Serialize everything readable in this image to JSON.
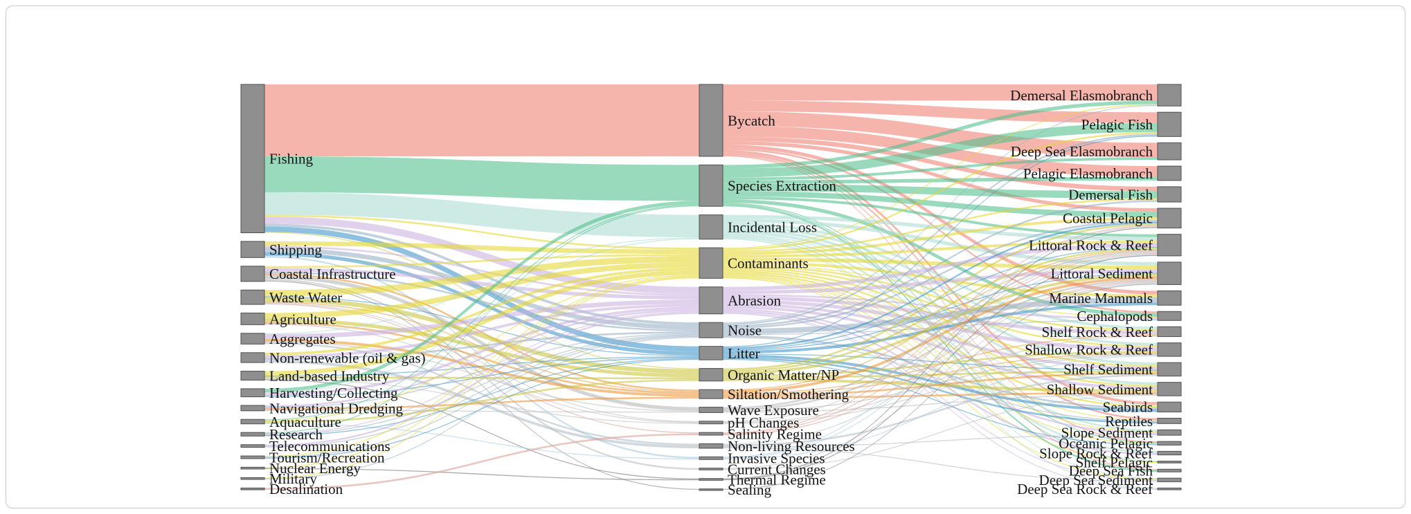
{
  "page": {
    "background_color": "#ffffff",
    "frame_border_color": "#c9c9c9"
  },
  "chart_data": {
    "type": "sankey",
    "title": "",
    "legend": "none",
    "node_color": "#8f8f8f",
    "node_border_color": "#4f4f4f",
    "label_color": "#141414",
    "default_link_color": "#b5b5b5",
    "link_opacity": 0.58,
    "columns": [
      {
        "name": "activities",
        "label_side": "right",
        "nodes": [
          "Fishing",
          "Shipping",
          "Coastal Infrastructure",
          "Waste Water",
          "Agriculture",
          "Aggregates",
          "Non-renewable (oil & gas)",
          "Land-based Industry",
          "Harvesting/Collecting",
          "Navigational Dredging",
          "Aquaculture",
          "Research",
          "Telecommunications",
          "Tourism/Recreation",
          "Nuclear Energy",
          "Military",
          "Desalination"
        ]
      },
      {
        "name": "pressures",
        "label_side": "right",
        "nodes": [
          "Bycatch",
          "Species Extraction",
          "Incidental Loss",
          "Contaminants",
          "Abrasion",
          "Noise",
          "Litter",
          "Organic Matter/NP",
          "Siltation/Smothering",
          "Wave Exposure",
          "pH Changes",
          "Salinity Regime",
          "Non-living Resources",
          "Invasive Species",
          "Current Changes",
          "Thermal Regime",
          "Sealing"
        ]
      },
      {
        "name": "ecosystem-components",
        "label_side": "left",
        "nodes": [
          "Demersal Elasmobranch",
          "Pelagic Fish",
          "Deep Sea Elasmobranch",
          "Pelagic Elasmobranch",
          "Demersal Fish",
          "Coastal Pelagic",
          "Littoral Rock & Reef",
          "Littoral Sediment",
          "Marine Mammals",
          "Cephalopods",
          "Shelf Rock & Reef",
          "Shallow Rock & Reef",
          "Shelf Sediment",
          "Shallow Sediment",
          "Seabirds",
          "Reptiles",
          "Slope Sediment",
          "Oceanic Pelagic",
          "Slope Rock & Reef",
          "Shelf Pelagic",
          "Deep Sea Fish",
          "Deep Sea Sediment",
          "Deep Sea Rock & Reef"
        ]
      }
    ],
    "pressure_colors": {
      "Bycatch": "#ed7f70",
      "Species Extraction": "#50bd8b",
      "Incidental Loss": "#a9dcd1",
      "Contaminants": "#e5d82f",
      "Abrasion": "#c9b1e0",
      "Noise": "#97afc4",
      "Litter": "#3d95c8",
      "Organic Matter/NP": "#c9c63b",
      "Siltation/Smothering": "#ec9537",
      "Wave Exposure": "#b5b5b5",
      "pH Changes": "#bdbdbd",
      "Salinity Regime": "#dd9b90",
      "Non-living Resources": "#b0bec7",
      "Invasive Species": "#a9cbe0",
      "Current Changes": "#bdbdbd",
      "Thermal Regime": "#6e6e6e",
      "Sealing": "#8c8c8c"
    },
    "links": [
      [
        "Fishing",
        "Bycatch",
        80
      ],
      [
        "Fishing",
        "Species Extraction",
        40
      ],
      [
        "Fishing",
        "Incidental Loss",
        25
      ],
      [
        "Fishing",
        "Abrasion",
        8
      ],
      [
        "Fishing",
        "Litter",
        6
      ],
      [
        "Fishing",
        "Noise",
        3
      ],
      [
        "Fishing",
        "Contaminants",
        2
      ],
      [
        "Fishing",
        "Organic Matter/NP",
        1
      ],
      [
        "Shipping",
        "Contaminants",
        5
      ],
      [
        "Shipping",
        "Noise",
        5
      ],
      [
        "Shipping",
        "Litter",
        4
      ],
      [
        "Shipping",
        "Invasive Species",
        2
      ],
      [
        "Shipping",
        "Abrasion",
        2
      ],
      [
        "Coastal Infrastructure",
        "Abrasion",
        4
      ],
      [
        "Coastal Infrastructure",
        "Wave Exposure",
        4
      ],
      [
        "Coastal Infrastructure",
        "Siltation/Smothering",
        2
      ],
      [
        "Coastal Infrastructure",
        "Noise",
        2
      ],
      [
        "Coastal Infrastructure",
        "Contaminants",
        2
      ],
      [
        "Coastal Infrastructure",
        "Current Changes",
        2
      ],
      [
        "Coastal Infrastructure",
        "Sealing",
        1
      ],
      [
        "Waste Water",
        "Contaminants",
        7
      ],
      [
        "Waste Water",
        "Organic Matter/NP",
        5
      ],
      [
        "Waste Water",
        "Litter",
        1
      ],
      [
        "Waste Water",
        "Siltation/Smothering",
        1
      ],
      [
        "Waste Water",
        "pH Changes",
        1
      ],
      [
        "Waste Water",
        "Salinity Regime",
        1
      ],
      [
        "Agriculture",
        "Contaminants",
        6
      ],
      [
        "Agriculture",
        "Organic Matter/NP",
        4
      ],
      [
        "Agriculture",
        "Siltation/Smothering",
        2
      ],
      [
        "Agriculture",
        "pH Changes",
        1
      ],
      [
        "Aggregates",
        "Abrasion",
        5
      ],
      [
        "Aggregates",
        "Siltation/Smothering",
        3
      ],
      [
        "Aggregates",
        "Non-living Resources",
        2
      ],
      [
        "Aggregates",
        "Incidental Loss",
        1
      ],
      [
        "Aggregates",
        "Wave Exposure",
        1
      ],
      [
        "Non-renewable (oil & gas)",
        "Contaminants",
        3
      ],
      [
        "Non-renewable (oil & gas)",
        "Abrasion",
        3
      ],
      [
        "Non-renewable (oil & gas)",
        "Noise",
        2
      ],
      [
        "Non-renewable (oil & gas)",
        "Non-living Resources",
        3
      ],
      [
        "Land-based Industry",
        "Contaminants",
        5
      ],
      [
        "Land-based Industry",
        "Organic Matter/NP",
        2
      ],
      [
        "Land-based Industry",
        "Thermal Regime",
        1
      ],
      [
        "Land-based Industry",
        "Litter",
        1
      ],
      [
        "Land-based Industry",
        "pH Changes",
        1
      ],
      [
        "Harvesting/Collecting",
        "Species Extraction",
        4
      ],
      [
        "Harvesting/Collecting",
        "Abrasion",
        3
      ],
      [
        "Harvesting/Collecting",
        "Incidental Loss",
        1
      ],
      [
        "Harvesting/Collecting",
        "Litter",
        1
      ],
      [
        "Navigational Dredging",
        "Siltation/Smothering",
        2
      ],
      [
        "Navigational Dredging",
        "Abrasion",
        2
      ],
      [
        "Navigational Dredging",
        "Noise",
        1
      ],
      [
        "Navigational Dredging",
        "Wave Exposure",
        1
      ],
      [
        "Aquaculture",
        "Organic Matter/NP",
        2
      ],
      [
        "Aquaculture",
        "Contaminants",
        1
      ],
      [
        "Aquaculture",
        "Invasive Species",
        1
      ],
      [
        "Aquaculture",
        "Species Extraction",
        1
      ],
      [
        "Research",
        "Noise",
        1
      ],
      [
        "Research",
        "Abrasion",
        1
      ],
      [
        "Research",
        "Species Extraction",
        1
      ],
      [
        "Research",
        "Litter",
        1
      ],
      [
        "Telecommunications",
        "Abrasion",
        2
      ],
      [
        "Telecommunications",
        "Noise",
        1
      ],
      [
        "Tourism/Recreation",
        "Litter",
        1
      ],
      [
        "Tourism/Recreation",
        "Noise",
        1
      ],
      [
        "Tourism/Recreation",
        "Contaminants",
        1
      ],
      [
        "Nuclear Energy",
        "Thermal Regime",
        1
      ],
      [
        "Nuclear Energy",
        "Contaminants",
        1
      ],
      [
        "Military",
        "Noise",
        1
      ],
      [
        "Military",
        "Contaminants",
        1
      ],
      [
        "Desalination",
        "Salinity Regime",
        2
      ],
      [
        "Bycatch",
        "Demersal Elasmobranch",
        18
      ],
      [
        "Bycatch",
        "Pelagic Fish",
        12
      ],
      [
        "Bycatch",
        "Deep Sea Elasmobranch",
        16
      ],
      [
        "Bycatch",
        "Pelagic Elasmobranch",
        12
      ],
      [
        "Bycatch",
        "Demersal Fish",
        5
      ],
      [
        "Bycatch",
        "Coastal Pelagic",
        4
      ],
      [
        "Bycatch",
        "Marine Mammals",
        4
      ],
      [
        "Bycatch",
        "Seabirds",
        3
      ],
      [
        "Bycatch",
        "Reptiles",
        2
      ],
      [
        "Bycatch",
        "Cephalopods",
        2
      ],
      [
        "Bycatch",
        "Deep Sea Fish",
        1
      ],
      [
        "Bycatch",
        "Oceanic Pelagic",
        1
      ],
      [
        "Species Extraction",
        "Pelagic Fish",
        10
      ],
      [
        "Species Extraction",
        "Demersal Fish",
        8
      ],
      [
        "Species Extraction",
        "Coastal Pelagic",
        6
      ],
      [
        "Species Extraction",
        "Cephalopods",
        4
      ],
      [
        "Species Extraction",
        "Demersal Elasmobranch",
        4
      ],
      [
        "Species Extraction",
        "Pelagic Elasmobranch",
        4
      ],
      [
        "Species Extraction",
        "Deep Sea Elasmobranch",
        3
      ],
      [
        "Species Extraction",
        "Littoral Rock & Reef",
        3
      ],
      [
        "Species Extraction",
        "Deep Sea Fish",
        2
      ],
      [
        "Species Extraction",
        "Shelf Pelagic",
        1
      ],
      [
        "Species Extraction",
        "Oceanic Pelagic",
        1
      ],
      [
        "Incidental Loss",
        "Littoral Rock & Reef",
        4
      ],
      [
        "Incidental Loss",
        "Littoral Sediment",
        4
      ],
      [
        "Incidental Loss",
        "Shelf Rock & Reef",
        3
      ],
      [
        "Incidental Loss",
        "Shallow Rock & Reef",
        3
      ],
      [
        "Incidental Loss",
        "Shelf Sediment",
        3
      ],
      [
        "Incidental Loss",
        "Shallow Sediment",
        3
      ],
      [
        "Incidental Loss",
        "Slope Sediment",
        2
      ],
      [
        "Incidental Loss",
        "Slope Rock & Reef",
        2
      ],
      [
        "Incidental Loss",
        "Deep Sea Sediment",
        1
      ],
      [
        "Incidental Loss",
        "Deep Sea Rock & Reef",
        1
      ],
      [
        "Incidental Loss",
        "Seabirds",
        1
      ],
      [
        "Contaminants",
        "Littoral Rock & Reef",
        3
      ],
      [
        "Contaminants",
        "Littoral Sediment",
        4
      ],
      [
        "Contaminants",
        "Marine Mammals",
        3
      ],
      [
        "Contaminants",
        "Coastal Pelagic",
        3
      ],
      [
        "Contaminants",
        "Shelf Rock & Reef",
        2
      ],
      [
        "Contaminants",
        "Shallow Rock & Reef",
        2
      ],
      [
        "Contaminants",
        "Shelf Sediment",
        2
      ],
      [
        "Contaminants",
        "Shallow Sediment",
        2
      ],
      [
        "Contaminants",
        "Pelagic Fish",
        2
      ],
      [
        "Contaminants",
        "Demersal Fish",
        2
      ],
      [
        "Contaminants",
        "Seabirds",
        2
      ],
      [
        "Contaminants",
        "Demersal Elasmobranch",
        1
      ],
      [
        "Contaminants",
        "Reptiles",
        1
      ],
      [
        "Contaminants",
        "Cephalopods",
        1
      ],
      [
        "Contaminants",
        "Slope Sediment",
        1
      ],
      [
        "Contaminants",
        "Oceanic Pelagic",
        1
      ],
      [
        "Contaminants",
        "Shelf Pelagic",
        1
      ],
      [
        "Contaminants",
        "Deep Sea Sediment",
        1
      ],
      [
        "Abrasion",
        "Littoral Rock & Reef",
        4
      ],
      [
        "Abrasion",
        "Littoral Sediment",
        4
      ],
      [
        "Abrasion",
        "Shelf Rock & Reef",
        4
      ],
      [
        "Abrasion",
        "Shallow Rock & Reef",
        4
      ],
      [
        "Abrasion",
        "Shelf Sediment",
        3
      ],
      [
        "Abrasion",
        "Shallow Sediment",
        3
      ],
      [
        "Abrasion",
        "Slope Rock & Reef",
        2
      ],
      [
        "Abrasion",
        "Slope Sediment",
        2
      ],
      [
        "Abrasion",
        "Cephalopods",
        2
      ],
      [
        "Abrasion",
        "Deep Sea Rock & Reef",
        1
      ],
      [
        "Abrasion",
        "Deep Sea Sediment",
        1
      ],
      [
        "Noise",
        "Marine Mammals",
        6
      ],
      [
        "Noise",
        "Pelagic Fish",
        2
      ],
      [
        "Noise",
        "Demersal Fish",
        2
      ],
      [
        "Noise",
        "Coastal Pelagic",
        2
      ],
      [
        "Noise",
        "Seabirds",
        2
      ],
      [
        "Noise",
        "Reptiles",
        1
      ],
      [
        "Noise",
        "Cephalopods",
        1
      ],
      [
        "Noise",
        "Demersal Elasmobranch",
        1
      ],
      [
        "Litter",
        "Marine Mammals",
        3
      ],
      [
        "Litter",
        "Seabirds",
        3
      ],
      [
        "Litter",
        "Reptiles",
        2
      ],
      [
        "Litter",
        "Coastal Pelagic",
        2
      ],
      [
        "Litter",
        "Littoral Sediment",
        1
      ],
      [
        "Litter",
        "Littoral Rock & Reef",
        1
      ],
      [
        "Litter",
        "Pelagic Fish",
        1
      ],
      [
        "Litter",
        "Shelf Sediment",
        1
      ],
      [
        "Litter",
        "Oceanic Pelagic",
        1
      ],
      [
        "Organic Matter/NP",
        "Littoral Sediment",
        3
      ],
      [
        "Organic Matter/NP",
        "Shallow Sediment",
        3
      ],
      [
        "Organic Matter/NP",
        "Shelf Sediment",
        2
      ],
      [
        "Organic Matter/NP",
        "Littoral Rock & Reef",
        2
      ],
      [
        "Organic Matter/NP",
        "Shallow Rock & Reef",
        2
      ],
      [
        "Organic Matter/NP",
        "Coastal Pelagic",
        2
      ],
      [
        "Siltation/Smothering",
        "Littoral Sediment",
        3
      ],
      [
        "Siltation/Smothering",
        "Shallow Sediment",
        2
      ],
      [
        "Siltation/Smothering",
        "Shelf Sediment",
        2
      ],
      [
        "Siltation/Smothering",
        "Littoral Rock & Reef",
        1
      ],
      [
        "Siltation/Smothering",
        "Shallow Rock & Reef",
        1
      ],
      [
        "Siltation/Smothering",
        "Shelf Rock & Reef",
        1
      ],
      [
        "Wave Exposure",
        "Littoral Rock & Reef",
        2
      ],
      [
        "Wave Exposure",
        "Littoral Sediment",
        2
      ],
      [
        "Wave Exposure",
        "Shallow Sediment",
        1
      ],
      [
        "Wave Exposure",
        "Shallow Rock & Reef",
        1
      ],
      [
        "pH Changes",
        "Littoral Rock & Reef",
        1
      ],
      [
        "pH Changes",
        "Shallow Rock & Reef",
        1
      ],
      [
        "pH Changes",
        "Shelf Rock & Reef",
        1
      ],
      [
        "Salinity Regime",
        "Littoral Sediment",
        1
      ],
      [
        "Salinity Regime",
        "Littoral Rock & Reef",
        1
      ],
      [
        "Salinity Regime",
        "Coastal Pelagic",
        1
      ],
      [
        "Non-living Resources",
        "Shelf Sediment",
        2
      ],
      [
        "Non-living Resources",
        "Slope Sediment",
        1
      ],
      [
        "Non-living Resources",
        "Deep Sea Sediment",
        1
      ],
      [
        "Non-living Resources",
        "Littoral Sediment",
        1
      ],
      [
        "Invasive Species",
        "Littoral Rock & Reef",
        1
      ],
      [
        "Invasive Species",
        "Shallow Rock & Reef",
        1
      ],
      [
        "Invasive Species",
        "Coastal Pelagic",
        1
      ],
      [
        "Current Changes",
        "Littoral Sediment",
        1
      ],
      [
        "Current Changes",
        "Shallow Sediment",
        1
      ],
      [
        "Thermal Regime",
        "Coastal Pelagic",
        1
      ],
      [
        "Thermal Regime",
        "Littoral Rock & Reef",
        1
      ],
      [
        "Sealing",
        "Littoral Sediment",
        1
      ]
    ]
  }
}
